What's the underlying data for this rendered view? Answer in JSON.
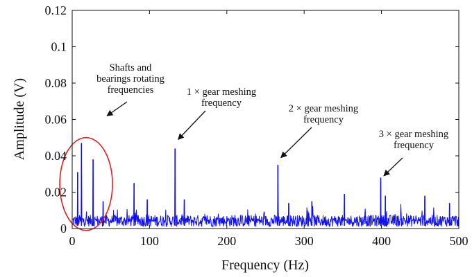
{
  "chart_data": {
    "type": "line",
    "title": "",
    "xlabel": "Frequency (Hz)",
    "ylabel": "Amplitude (V)",
    "xlim": [
      0,
      500
    ],
    "ylim": [
      0,
      0.12
    ],
    "x_ticks": [
      "0",
      "100",
      "200",
      "300",
      "400",
      "500"
    ],
    "y_ticks": [
      "0",
      "0.02",
      "0.04",
      "0.06",
      "0.08",
      "0.1",
      "0.12"
    ],
    "grid": false,
    "line_color": "#1010ee",
    "highlight_color": "#e02020",
    "series": [
      {
        "name": "",
        "noise_floor": 0.005,
        "peaks": [
          {
            "x": 7,
            "y": 0.031
          },
          {
            "x": 12,
            "y": 0.047
          },
          {
            "x": 27,
            "y": 0.038
          },
          {
            "x": 40,
            "y": 0.015
          },
          {
            "x": 80,
            "y": 0.025
          },
          {
            "x": 97,
            "y": 0.016
          },
          {
            "x": 133,
            "y": 0.044
          },
          {
            "x": 145,
            "y": 0.016
          },
          {
            "x": 266,
            "y": 0.035
          },
          {
            "x": 280,
            "y": 0.014
          },
          {
            "x": 310,
            "y": 0.015
          },
          {
            "x": 352,
            "y": 0.019
          },
          {
            "x": 399,
            "y": 0.028
          },
          {
            "x": 405,
            "y": 0.018
          },
          {
            "x": 456,
            "y": 0.018
          },
          {
            "x": 488,
            "y": 0.014
          }
        ]
      }
    ],
    "annotations": [
      {
        "lines": [
          "Shafts and",
          "bearings rotating",
          "frequencies"
        ],
        "points_to": {
          "x": 45,
          "y": 0.062
        }
      },
      {
        "lines": [
          "1 × gear meshing",
          "frequency"
        ],
        "points_to": {
          "x": 137,
          "y": 0.049
        }
      },
      {
        "lines": [
          "2 × gear meshing",
          "frequency"
        ],
        "points_to": {
          "x": 270,
          "y": 0.039
        }
      },
      {
        "lines": [
          "3 × gear meshing",
          "frequency"
        ],
        "points_to": {
          "x": 403,
          "y": 0.029
        }
      }
    ]
  }
}
